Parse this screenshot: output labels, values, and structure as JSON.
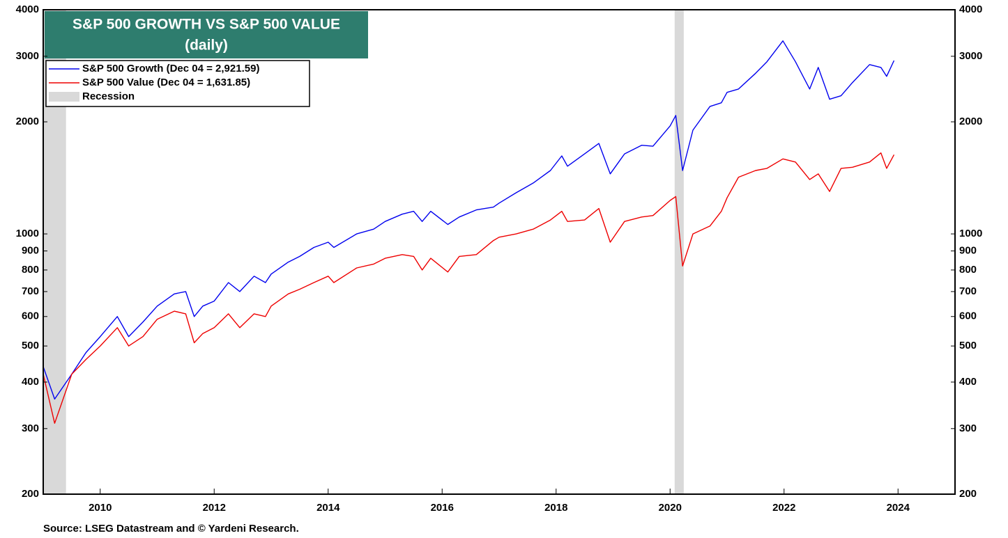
{
  "chart_data": {
    "type": "line",
    "title": "S&P 500 GROWTH VS S&P 500 VALUE",
    "subtitle": "(daily)",
    "source": "Source: LSEG Datastream and © Yardeni Research.",
    "log_y": true,
    "grid": false,
    "legend": "upper left",
    "xlim": [
      2009,
      2025
    ],
    "xticks": [
      2010,
      2012,
      2014,
      2016,
      2018,
      2020,
      2022,
      2024
    ],
    "ylim": [
      200,
      4000
    ],
    "yticks": [
      200,
      300,
      400,
      500,
      600,
      700,
      800,
      900,
      1000,
      2000,
      3000,
      4000
    ],
    "shaded": {
      "name": "Recession",
      "color": "#d9d9d9",
      "ranges": [
        [
          2009.0,
          2009.4
        ],
        [
          2020.08,
          2020.24
        ]
      ]
    },
    "x": [
      2009.0,
      2009.2,
      2009.5,
      2009.75,
      2010.0,
      2010.3,
      2010.5,
      2010.75,
      2011.0,
      2011.3,
      2011.5,
      2011.65,
      2011.8,
      2012.0,
      2012.25,
      2012.45,
      2012.7,
      2012.9,
      2013.0,
      2013.3,
      2013.5,
      2013.75,
      2014.0,
      2014.1,
      2014.5,
      2014.8,
      2015.0,
      2015.3,
      2015.5,
      2015.65,
      2015.8,
      2016.1,
      2016.3,
      2016.6,
      2016.9,
      2017.0,
      2017.3,
      2017.6,
      2017.9,
      2018.1,
      2018.2,
      2018.5,
      2018.75,
      2018.95,
      2019.2,
      2019.5,
      2019.7,
      2020.0,
      2020.1,
      2020.22,
      2020.4,
      2020.7,
      2020.9,
      2021.0,
      2021.2,
      2021.5,
      2021.7,
      2021.98,
      2022.2,
      2022.45,
      2022.6,
      2022.8,
      2023.0,
      2023.2,
      2023.5,
      2023.7,
      2023.8,
      2023.93
    ],
    "series": [
      {
        "name": "S&P 500 Growth (Dec 04 = 2,921.59)",
        "color": "#0000ee",
        "values": [
          440,
          360,
          420,
          480,
          530,
          600,
          530,
          580,
          640,
          690,
          700,
          600,
          640,
          660,
          740,
          700,
          770,
          740,
          780,
          840,
          870,
          920,
          950,
          920,
          1000,
          1030,
          1080,
          1130,
          1150,
          1080,
          1150,
          1060,
          1110,
          1160,
          1180,
          1210,
          1290,
          1370,
          1480,
          1620,
          1520,
          1640,
          1750,
          1450,
          1640,
          1730,
          1720,
          1950,
          2080,
          1480,
          1900,
          2200,
          2250,
          2400,
          2450,
          2700,
          2900,
          3300,
          2900,
          2450,
          2800,
          2300,
          2350,
          2550,
          2850,
          2800,
          2650,
          2921.59
        ]
      },
      {
        "name": "S&P 500 Value (Dec 04 = 1,631.85)",
        "color": "#ee0000",
        "values": [
          420,
          310,
          420,
          460,
          500,
          560,
          500,
          530,
          590,
          620,
          610,
          510,
          540,
          560,
          610,
          560,
          610,
          600,
          640,
          690,
          710,
          740,
          770,
          740,
          810,
          830,
          860,
          880,
          870,
          800,
          860,
          790,
          870,
          880,
          960,
          980,
          1000,
          1030,
          1090,
          1150,
          1080,
          1090,
          1170,
          950,
          1080,
          1110,
          1120,
          1230,
          1260,
          820,
          1000,
          1050,
          1150,
          1250,
          1420,
          1480,
          1500,
          1590,
          1560,
          1400,
          1450,
          1300,
          1500,
          1510,
          1560,
          1650,
          1500,
          1631.85
        ]
      }
    ]
  }
}
